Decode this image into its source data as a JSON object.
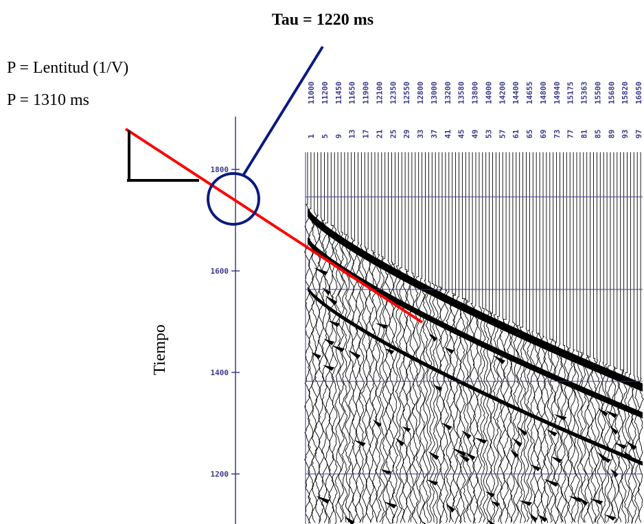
{
  "title": "Tau = 1220 ms",
  "annotations": [
    "P = Lentitud (1/V)",
    "P = 1310 ms"
  ],
  "time_axis": {
    "label": "Tiempo",
    "ylim": [
      1100,
      1900
    ],
    "ticks": [
      1200,
      1400,
      1600,
      1800
    ]
  },
  "offsets": [
    "11000",
    "11200",
    "11450",
    "11650",
    "11900",
    "12100",
    "12350",
    "12550",
    "12800",
    "13000",
    "13200",
    "13580",
    "13800",
    "14000",
    "14200",
    "14400",
    "14655",
    "14800",
    "14940",
    "15175",
    "15363",
    "15500",
    "15680",
    "15820",
    "16050"
  ],
  "traces": [
    "1",
    "5",
    "9",
    "13",
    "17",
    "21",
    "25",
    "29",
    "33",
    "37",
    "41",
    "45",
    "49",
    "53",
    "57",
    "61",
    "65",
    "69",
    "73",
    "77",
    "81",
    "85",
    "89",
    "93",
    "97"
  ]
}
